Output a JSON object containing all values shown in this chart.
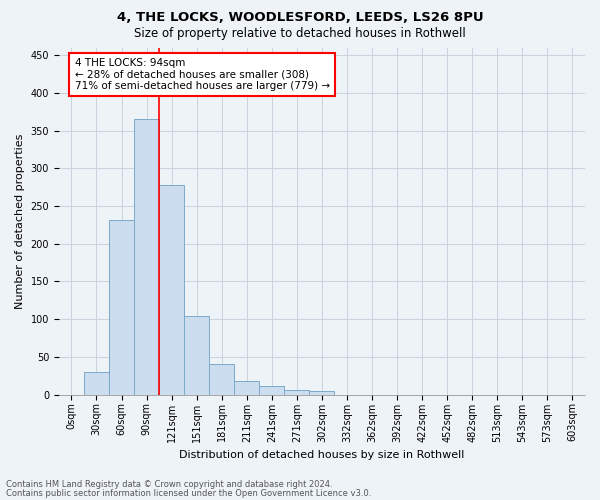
{
  "title1": "4, THE LOCKS, WOODLESFORD, LEEDS, LS26 8PU",
  "title2": "Size of property relative to detached houses in Rothwell",
  "xlabel": "Distribution of detached houses by size in Rothwell",
  "ylabel": "Number of detached properties",
  "footer1": "Contains HM Land Registry data © Crown copyright and database right 2024.",
  "footer2": "Contains public sector information licensed under the Open Government Licence v3.0.",
  "bins": [
    "0sqm",
    "30sqm",
    "60sqm",
    "90sqm",
    "121sqm",
    "151sqm",
    "181sqm",
    "211sqm",
    "241sqm",
    "271sqm",
    "302sqm",
    "332sqm",
    "362sqm",
    "392sqm",
    "422sqm",
    "452sqm",
    "482sqm",
    "513sqm",
    "543sqm",
    "573sqm",
    "603sqm"
  ],
  "values": [
    0,
    30,
    232,
    365,
    278,
    104,
    40,
    18,
    12,
    6,
    5,
    0,
    0,
    0,
    0,
    0,
    0,
    0,
    0,
    0,
    0
  ],
  "bar_color": "#ccddef",
  "bar_edge_color": "#7aaac8",
  "bar_linewidth": 0.7,
  "grid_color": "#c8d4e0",
  "background_color": "#eef3f8",
  "plot_bg_color": "#eef3f8",
  "vline_color": "red",
  "vline_x_index": 3.5,
  "annotation_text": "4 THE LOCKS: 94sqm\n← 28% of detached houses are smaller (308)\n71% of semi-detached houses are larger (779) →",
  "annotation_box_color": "white",
  "annotation_box_edge": "red",
  "ylim": [
    0,
    460
  ],
  "yticks": [
    0,
    50,
    100,
    150,
    200,
    250,
    300,
    350,
    400,
    450
  ],
  "title1_fontsize": 9.5,
  "title2_fontsize": 8.5,
  "ylabel_fontsize": 8,
  "xlabel_fontsize": 8,
  "tick_fontsize": 7,
  "annotation_fontsize": 7.5,
  "footer_fontsize": 6
}
